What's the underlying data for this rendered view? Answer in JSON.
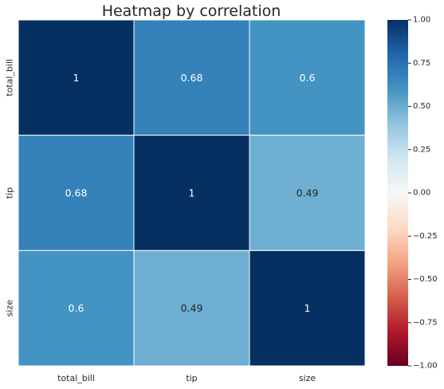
{
  "chart_data": {
    "type": "heatmap",
    "title": "Heatmap by correlation",
    "x_categories": [
      "total_bill",
      "tip",
      "size"
    ],
    "y_categories": [
      "total_bill",
      "tip",
      "size"
    ],
    "values": [
      [
        1,
        0.68,
        0.6
      ],
      [
        0.68,
        1,
        0.49
      ],
      [
        0.6,
        0.49,
        1
      ]
    ],
    "cell_labels": [
      [
        "1",
        "0.68",
        "0.6"
      ],
      [
        "0.68",
        "1",
        "0.49"
      ],
      [
        "0.6",
        "0.49",
        "1"
      ]
    ],
    "colormap": "RdBu",
    "vmin": -1.0,
    "vmax": 1.0,
    "colorbar_ticks": [
      1.0,
      0.75,
      0.5,
      0.25,
      0.0,
      -0.25,
      -0.5,
      -0.75,
      -1.0
    ],
    "colorbar_tick_labels": [
      "1.00",
      "0.75",
      "0.50",
      "0.25",
      "0.00",
      "−0.25",
      "−0.50",
      "−0.75",
      "−1.00"
    ],
    "colorbar_placement": "right",
    "annotated": true,
    "cell_border_color": "#ffffff"
  }
}
